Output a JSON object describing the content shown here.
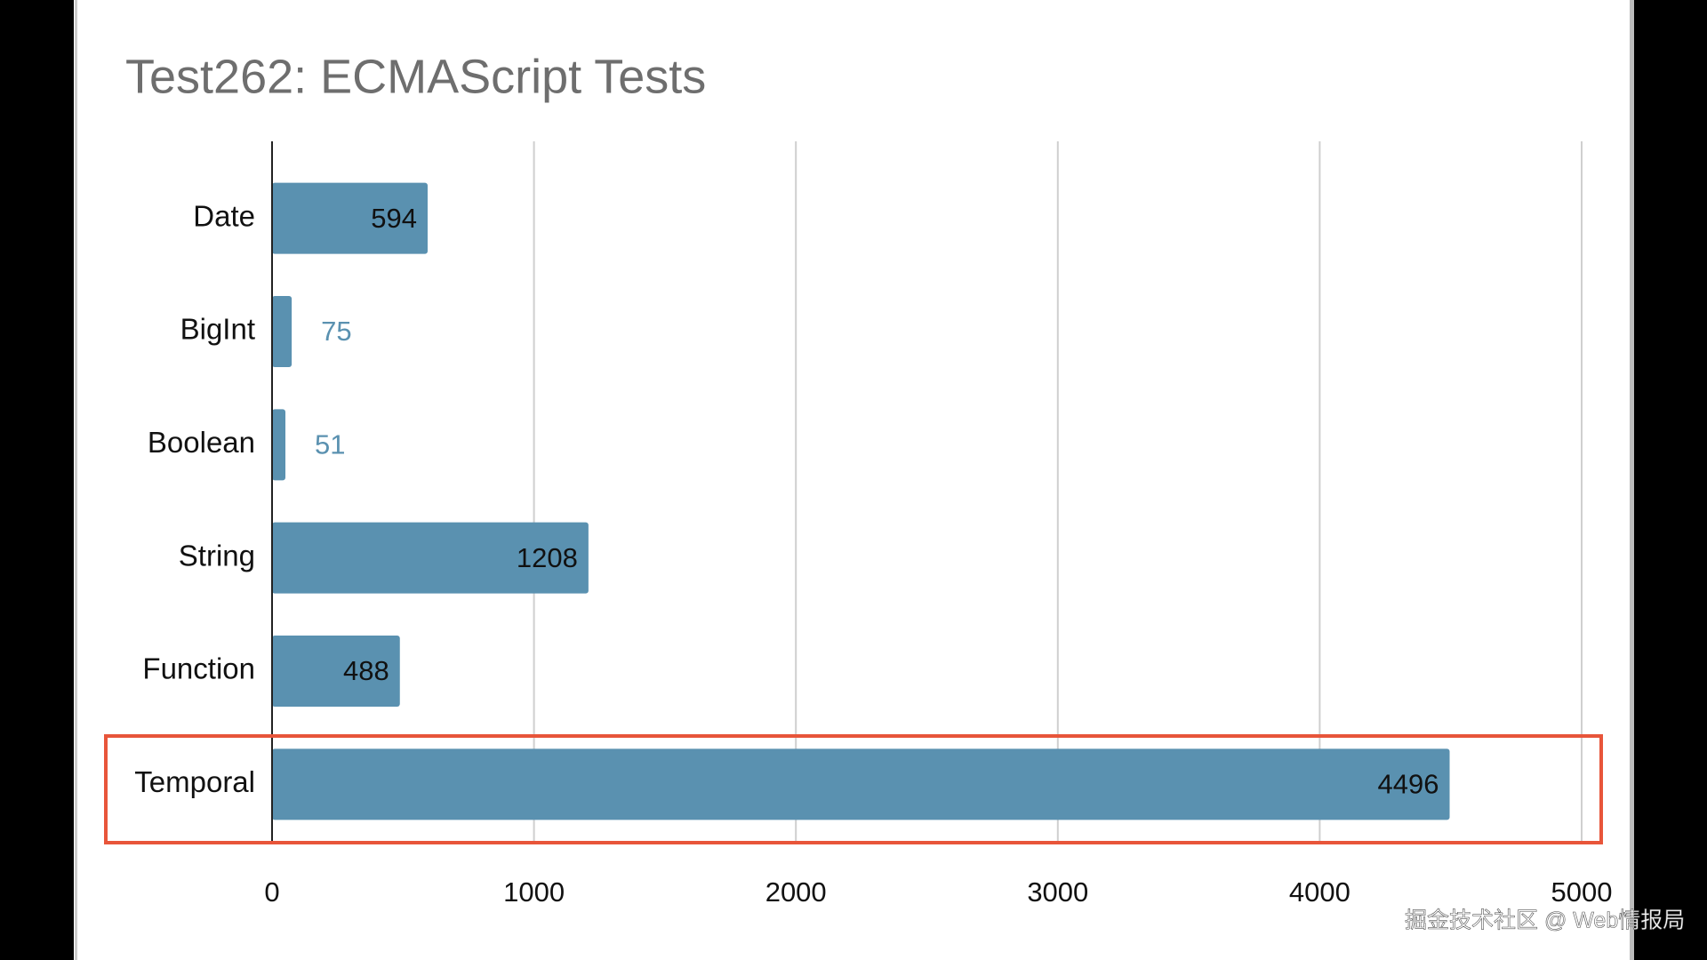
{
  "chart_data": {
    "type": "barh",
    "title": "Test262: ECMAScript Tests",
    "categories": [
      "Date",
      "BigInt",
      "Boolean",
      "String",
      "Function",
      "Temporal"
    ],
    "values": [
      594,
      75,
      51,
      1208,
      488,
      4496
    ],
    "color": "#5a91b0",
    "xlim": [
      0,
      5000
    ],
    "xticks": [
      0,
      1000,
      2000,
      3000,
      4000,
      5000
    ],
    "grid": true
  },
  "watermark": "掘金技术社区 @ Web情报局"
}
